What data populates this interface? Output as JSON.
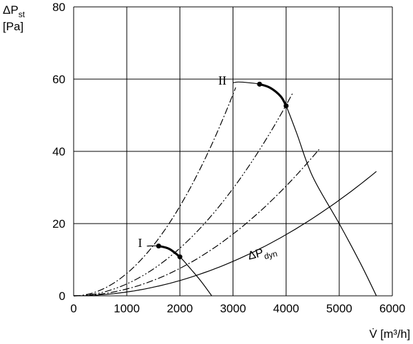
{
  "chart_data": {
    "type": "line",
    "title": "",
    "xlabel": "V̇ [m³/h]",
    "ylabel_line1": "ΔP",
    "ylabel_sub": "st",
    "ylabel_line2": "[Pa]",
    "xlim": [
      0,
      6000
    ],
    "ylim": [
      0,
      80
    ],
    "xticks": [
      0,
      1000,
      2000,
      3000,
      4000,
      5000,
      6000
    ],
    "yticks": [
      0,
      20,
      40,
      60,
      80
    ],
    "grid": true,
    "series": [
      {
        "name": "I",
        "kind": "fan-characteristic",
        "style": "solid",
        "points": [
          [
            1380,
            13.8
          ],
          [
            1600,
            13.8
          ],
          [
            1800,
            13.0
          ],
          [
            2000,
            10.8
          ],
          [
            2200,
            7.5
          ],
          [
            2400,
            4.0
          ],
          [
            2600,
            0
          ]
        ]
      },
      {
        "name": "II",
        "kind": "fan-characteristic",
        "style": "solid",
        "points": [
          [
            3000,
            59.0
          ],
          [
            3100,
            59.2
          ],
          [
            3300,
            59.0
          ],
          [
            3500,
            58.6
          ],
          [
            3700,
            57.6
          ],
          [
            3900,
            55.2
          ],
          [
            4000,
            52.6
          ],
          [
            4200,
            45.0
          ],
          [
            4500,
            33.0
          ],
          [
            5000,
            20.0
          ],
          [
            5400,
            9.0
          ],
          [
            5700,
            0
          ]
        ]
      },
      {
        "name": "",
        "kind": "system-curve",
        "style": "dash-dot",
        "coefficient_k": 6.2,
        "x_end": 3050
      },
      {
        "name": "",
        "kind": "system-curve",
        "style": "dash-dot-dot",
        "coefficient_k": 3.3,
        "x_end": 4120
      },
      {
        "name": "",
        "kind": "system-curve",
        "style": "dash-dot",
        "coefficient_k": 1.9,
        "x_end": 4620
      },
      {
        "name": "ΔP",
        "name_sub": "dyn",
        "kind": "dynamic-pressure",
        "style": "solid",
        "coefficient_k": 1.06,
        "x_end": 5700
      }
    ],
    "highlighted_segments": [
      {
        "series": "I",
        "points": [
          [
            1600,
            13.8
          ],
          [
            1800,
            13.0
          ],
          [
            2000,
            10.8
          ]
        ]
      },
      {
        "series": "II",
        "points": [
          [
            3500,
            58.6
          ],
          [
            3700,
            57.6
          ],
          [
            3900,
            55.2
          ],
          [
            4000,
            52.6
          ]
        ]
      }
    ],
    "operating_points": [
      [
        1600,
        13.8
      ],
      [
        2000,
        10.8
      ],
      [
        3500,
        58.6
      ],
      [
        4000,
        52.6
      ]
    ],
    "annotations": [
      {
        "text": "I",
        "at": [
          1250,
          13.5
        ]
      },
      {
        "text": "II",
        "at": [
          2800,
          58.5
        ]
      },
      {
        "text": "ΔP",
        "sub": "dyn",
        "at": [
          3300,
          10
        ]
      }
    ]
  }
}
